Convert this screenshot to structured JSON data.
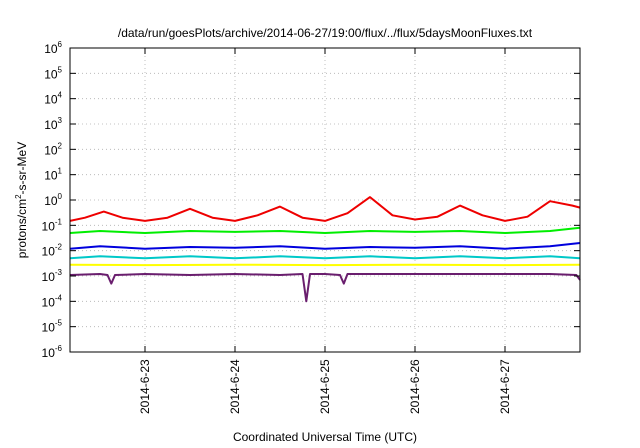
{
  "chart_data": {
    "type": "line",
    "title": "/data/run/goesPlots/archive/2014-06-27/19:00/flux/../flux/5daysMoonFluxes.txt",
    "xlabel": "Coordinated Universal Time (UTC)",
    "ylabel": "protons/cm²-s-sr-MeV",
    "ylabel_parts": {
      "prefix": "protons/cm",
      "sup": "2",
      "suffix": "-s-sr-MeV"
    },
    "y_scale": "log",
    "ylim": [
      1e-06,
      1000000.0
    ],
    "y_ticks": [
      {
        "value": 1e-06,
        "base": "10",
        "exp": "-6"
      },
      {
        "value": 1e-05,
        "base": "10",
        "exp": "-5"
      },
      {
        "value": 0.0001,
        "base": "10",
        "exp": "-4"
      },
      {
        "value": 0.001,
        "base": "10",
        "exp": "-3"
      },
      {
        "value": 0.01,
        "base": "10",
        "exp": "-2"
      },
      {
        "value": 0.1,
        "base": "10",
        "exp": "-1"
      },
      {
        "value": 1,
        "base": "10",
        "exp": "0"
      },
      {
        "value": 10.0,
        "base": "10",
        "exp": "1"
      },
      {
        "value": 100.0,
        "base": "10",
        "exp": "2"
      },
      {
        "value": 1000.0,
        "base": "10",
        "exp": "3"
      },
      {
        "value": 10000.0,
        "base": "10",
        "exp": "4"
      },
      {
        "value": 100000.0,
        "base": "10",
        "exp": "5"
      },
      {
        "value": 1000000.0,
        "base": "10",
        "exp": "6"
      }
    ],
    "xlim": [
      "2014-06-22T04:00",
      "2014-06-27T20:00"
    ],
    "x_ticks": [
      {
        "value": "2014-06-23T00:00",
        "label": "2014-6-23"
      },
      {
        "value": "2014-06-24T00:00",
        "label": "2014-6-24"
      },
      {
        "value": "2014-06-25T00:00",
        "label": "2014-6-25"
      },
      {
        "value": "2014-06-26T00:00",
        "label": "2014-6-26"
      },
      {
        "value": "2014-06-27T00:00",
        "label": "2014-6-27"
      }
    ],
    "grid": true,
    "series": [
      {
        "color": "#6a1e6e",
        "x": [
          "2014-06-22T04:00",
          "2014-06-22T12:00",
          "2014-06-22T14:00",
          "2014-06-22T15:00",
          "2014-06-22T16:00",
          "2014-06-23T00:00",
          "2014-06-23T12:00",
          "2014-06-24T00:00",
          "2014-06-24T12:00",
          "2014-06-24T18:00",
          "2014-06-24T19:00",
          "2014-06-24T20:00",
          "2014-06-25T00:00",
          "2014-06-25T04:00",
          "2014-06-25T05:00",
          "2014-06-25T06:00",
          "2014-06-25T12:00",
          "2014-06-26T00:00",
          "2014-06-26T12:00",
          "2014-06-27T00:00",
          "2014-06-27T12:00",
          "2014-06-27T19:00",
          "2014-06-27T20:00"
        ],
        "values": [
          0.0011,
          0.0012,
          0.0011,
          0.0005,
          0.0011,
          0.0012,
          0.0011,
          0.0012,
          0.0011,
          0.0012,
          0.0001,
          0.0012,
          0.0012,
          0.0011,
          0.0005,
          0.0012,
          0.0012,
          0.0012,
          0.0012,
          0.0012,
          0.0012,
          0.0011,
          0.0007
        ]
      },
      {
        "color": "#ffff00",
        "x": [
          "2014-06-22T04:00",
          "2014-06-23T00:00",
          "2014-06-24T00:00",
          "2014-06-25T00:00",
          "2014-06-26T00:00",
          "2014-06-27T00:00",
          "2014-06-27T20:00"
        ],
        "values": [
          0.0028,
          0.0027,
          0.0028,
          0.0027,
          0.0028,
          0.0027,
          0.0028
        ]
      },
      {
        "color": "#00c8c8",
        "x": [
          "2014-06-22T04:00",
          "2014-06-22T12:00",
          "2014-06-23T00:00",
          "2014-06-23T12:00",
          "2014-06-24T00:00",
          "2014-06-24T12:00",
          "2014-06-25T00:00",
          "2014-06-25T12:00",
          "2014-06-26T00:00",
          "2014-06-26T12:00",
          "2014-06-27T00:00",
          "2014-06-27T12:00",
          "2014-06-27T20:00"
        ],
        "values": [
          0.005,
          0.006,
          0.005,
          0.006,
          0.005,
          0.006,
          0.005,
          0.006,
          0.005,
          0.006,
          0.005,
          0.006,
          0.005
        ]
      },
      {
        "color": "#0000dd",
        "x": [
          "2014-06-22T04:00",
          "2014-06-22T12:00",
          "2014-06-23T00:00",
          "2014-06-23T12:00",
          "2014-06-24T00:00",
          "2014-06-24T12:00",
          "2014-06-25T00:00",
          "2014-06-25T12:00",
          "2014-06-26T00:00",
          "2014-06-26T12:00",
          "2014-06-27T00:00",
          "2014-06-27T12:00",
          "2014-06-27T20:00"
        ],
        "values": [
          0.012,
          0.015,
          0.012,
          0.014,
          0.013,
          0.015,
          0.012,
          0.014,
          0.013,
          0.015,
          0.012,
          0.015,
          0.02
        ]
      },
      {
        "color": "#00ee00",
        "x": [
          "2014-06-22T04:00",
          "2014-06-22T12:00",
          "2014-06-23T00:00",
          "2014-06-23T12:00",
          "2014-06-24T00:00",
          "2014-06-24T12:00",
          "2014-06-25T00:00",
          "2014-06-25T12:00",
          "2014-06-26T00:00",
          "2014-06-26T12:00",
          "2014-06-27T00:00",
          "2014-06-27T12:00",
          "2014-06-27T20:00"
        ],
        "values": [
          0.05,
          0.06,
          0.05,
          0.06,
          0.055,
          0.06,
          0.05,
          0.06,
          0.055,
          0.06,
          0.05,
          0.06,
          0.08
        ]
      },
      {
        "color": "#ee0000",
        "x": [
          "2014-06-22T04:00",
          "2014-06-22T08:00",
          "2014-06-22T13:00",
          "2014-06-22T18:00",
          "2014-06-23T00:00",
          "2014-06-23T06:00",
          "2014-06-23T12:00",
          "2014-06-23T18:00",
          "2014-06-24T00:00",
          "2014-06-24T06:00",
          "2014-06-24T12:00",
          "2014-06-24T18:00",
          "2014-06-25T00:00",
          "2014-06-25T06:00",
          "2014-06-25T12:00",
          "2014-06-25T18:00",
          "2014-06-26T00:00",
          "2014-06-26T06:00",
          "2014-06-26T12:00",
          "2014-06-26T18:00",
          "2014-06-27T00:00",
          "2014-06-27T06:00",
          "2014-06-27T12:00",
          "2014-06-27T18:00",
          "2014-06-27T20:00"
        ],
        "values": [
          0.15,
          0.2,
          0.35,
          0.2,
          0.15,
          0.2,
          0.45,
          0.2,
          0.15,
          0.25,
          0.55,
          0.2,
          0.15,
          0.3,
          1.3,
          0.25,
          0.17,
          0.22,
          0.6,
          0.25,
          0.15,
          0.22,
          0.9,
          0.6,
          0.5
        ]
      }
    ]
  }
}
